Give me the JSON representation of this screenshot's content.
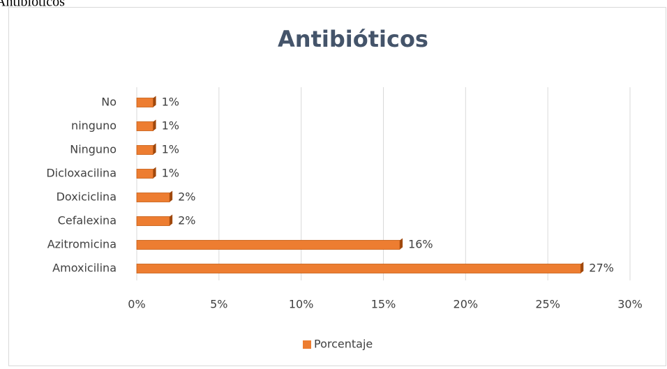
{
  "caption": "Antibióticos",
  "chart_data": {
    "type": "hbar",
    "title": "Antibióticos",
    "categories": [
      "Amoxicilina",
      "Azitromicina",
      "Cefalexina",
      "Doxiciclina",
      "Dicloxacilina",
      "Ninguno",
      "ninguno",
      "No"
    ],
    "series": [
      {
        "name": "Porcentaje",
        "color": "#ed7d31",
        "values": [
          27,
          16,
          2,
          2,
          1,
          1,
          1,
          1
        ],
        "value_labels": [
          "27%",
          "16%",
          "2%",
          "2%",
          "1%",
          "1%",
          "1%",
          "1%"
        ]
      }
    ],
    "xlim": [
      0,
      30
    ],
    "xticks": [
      {
        "value": 0,
        "label": "0%"
      },
      {
        "value": 5,
        "label": "5%"
      },
      {
        "value": 10,
        "label": "10%"
      },
      {
        "value": 15,
        "label": "15%"
      },
      {
        "value": 20,
        "label": "20%"
      },
      {
        "value": 25,
        "label": "25%"
      },
      {
        "value": 30,
        "label": "30%"
      }
    ],
    "grid": true,
    "legend": "bottom"
  }
}
